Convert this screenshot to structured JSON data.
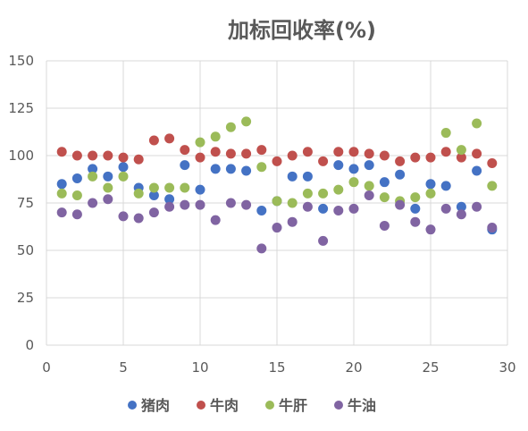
{
  "chart_data": {
    "type": "scatter",
    "title": "加标回收率(%)",
    "xlabel": "",
    "ylabel": "",
    "xlim": [
      0,
      30
    ],
    "ylim": [
      0,
      150
    ],
    "xticks": [
      0,
      5,
      10,
      15,
      20,
      25,
      30
    ],
    "yticks": [
      0,
      25,
      50,
      75,
      100,
      125,
      150
    ],
    "grid": "both",
    "legend_position": "bottom",
    "series": [
      {
        "name": "猪肉",
        "color": "#4472c4",
        "x": [
          1,
          2,
          3,
          4,
          5,
          6,
          7,
          8,
          9,
          10,
          11,
          12,
          13,
          14,
          15,
          16,
          17,
          18,
          19,
          20,
          21,
          22,
          23,
          24,
          25,
          26,
          27,
          28,
          29
        ],
        "y": [
          85,
          88,
          93,
          89,
          94,
          83,
          79,
          77,
          95,
          82,
          93,
          93,
          92,
          71,
          76,
          89,
          89,
          72,
          95,
          93,
          95,
          86,
          90,
          72,
          85,
          84,
          73,
          92,
          61
        ]
      },
      {
        "name": "牛肉",
        "color": "#c0504d",
        "x": [
          1,
          2,
          3,
          4,
          5,
          6,
          7,
          8,
          9,
          10,
          11,
          12,
          13,
          14,
          15,
          16,
          17,
          18,
          19,
          20,
          21,
          22,
          23,
          24,
          25,
          26,
          27,
          28,
          29
        ],
        "y": [
          102,
          100,
          100,
          100,
          99,
          98,
          108,
          109,
          103,
          99,
          102,
          101,
          101,
          103,
          97,
          100,
          102,
          97,
          102,
          102,
          101,
          100,
          97,
          99,
          99,
          102,
          99,
          101,
          96
        ]
      },
      {
        "name": "牛肝",
        "color": "#9bbb59",
        "x": [
          1,
          2,
          3,
          4,
          5,
          6,
          7,
          8,
          9,
          10,
          11,
          12,
          13,
          14,
          15,
          16,
          17,
          18,
          19,
          20,
          21,
          22,
          23,
          24,
          25,
          26,
          27,
          28,
          29
        ],
        "y": [
          80,
          79,
          89,
          83,
          89,
          80,
          83,
          83,
          83,
          107,
          110,
          115,
          118,
          94,
          76,
          75,
          80,
          80,
          82,
          86,
          84,
          78,
          76,
          78,
          80,
          112,
          103,
          117,
          84
        ]
      },
      {
        "name": "牛油",
        "color": "#8064a2",
        "x": [
          1,
          2,
          3,
          4,
          5,
          6,
          7,
          8,
          9,
          10,
          11,
          12,
          13,
          14,
          15,
          16,
          17,
          18,
          19,
          20,
          21,
          22,
          23,
          24,
          25,
          26,
          27,
          28,
          29
        ],
        "y": [
          70,
          69,
          75,
          77,
          68,
          67,
          70,
          73,
          74,
          74,
          66,
          75,
          74,
          51,
          62,
          65,
          73,
          55,
          71,
          72,
          79,
          63,
          74,
          65,
          61,
          72,
          69,
          73,
          62
        ]
      }
    ]
  }
}
